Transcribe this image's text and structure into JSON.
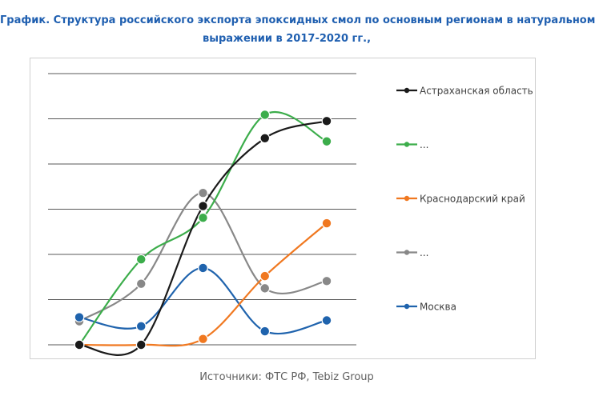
{
  "title_line1": "График. Структура российского экспорта эпоксидных смол по основным регионам в натуральном",
  "title_line2": "выражении в 2017-2020 гг.,",
  "source": "Источники: ФТС РФ, Tebiz Group",
  "chart_data": {
    "type": "line",
    "title": "График. Структура российского экспорта эпоксидных смол по основным регионам в натуральном выражении в 2017-2020 гг.,",
    "xlabel": "",
    "ylabel": "",
    "x": [
      1,
      2,
      3,
      4,
      5
    ],
    "ylim": [
      0,
      6
    ],
    "grid": true,
    "smooth": true,
    "legend_position": "right",
    "series": [
      {
        "name": "Астраханская область",
        "color": "#1a1a1a",
        "values": [
          0.0,
          0.0,
          3.07,
          4.57,
          4.95
        ]
      },
      {
        "name": "...",
        "color": "#3cad4b",
        "values": [
          0.0,
          1.89,
          2.81,
          5.09,
          4.5
        ]
      },
      {
        "name": "Краснодарский край",
        "color": "#f07820",
        "values": [
          0.0,
          0.0,
          0.13,
          1.52,
          2.69
        ]
      },
      {
        "name": "...",
        "color": "#888888",
        "values": [
          0.52,
          1.35,
          3.36,
          1.25,
          1.41
        ]
      },
      {
        "name": "Москва",
        "color": "#1f63ad",
        "values": [
          0.61,
          0.41,
          1.7,
          0.3,
          0.54
        ]
      }
    ]
  }
}
